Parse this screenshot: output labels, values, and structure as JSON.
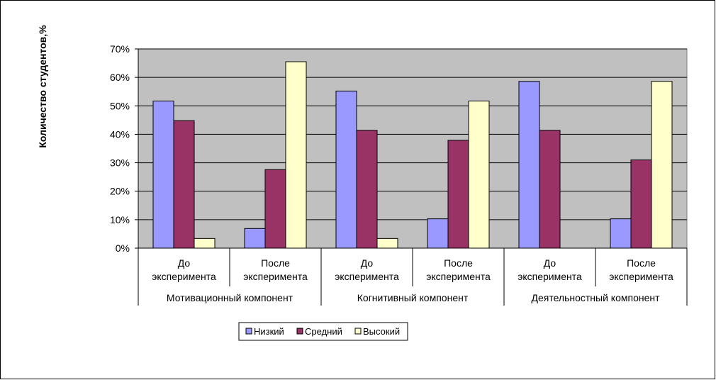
{
  "chart_data": {
    "type": "bar",
    "ylabel": "Количество студентов,%",
    "ylim": [
      0,
      70
    ],
    "yticks": [
      "0%",
      "10%",
      "20%",
      "30%",
      "40%",
      "50%",
      "60%",
      "70%"
    ],
    "grid": true,
    "legend_position": "bottom",
    "categories": [
      {
        "line1": "До",
        "line2": "эксперимента"
      },
      {
        "line1": "После",
        "line2": "эксперимента"
      },
      {
        "line1": "До",
        "line2": "эксперимента"
      },
      {
        "line1": "После",
        "line2": "эксперимента"
      },
      {
        "line1": "До",
        "line2": "эксперимента"
      },
      {
        "line1": "После",
        "line2": "эксперимента"
      }
    ],
    "groups": [
      "Мотивационный компонент",
      "Когнитивный компонент",
      "Деятельностный компонент"
    ],
    "series": [
      {
        "name": "Низкий",
        "color": "#9999ff",
        "values": [
          51.7,
          6.9,
          55.2,
          10.3,
          58.6,
          10.3
        ]
      },
      {
        "name": "Средний",
        "color": "#993366",
        "values": [
          44.8,
          27.6,
          41.4,
          37.9,
          41.4,
          31.0
        ]
      },
      {
        "name": "Высокий",
        "color": "#ffffcc",
        "values": [
          3.4,
          65.5,
          3.4,
          51.7,
          0,
          58.6
        ]
      }
    ],
    "plot_background": "#c0c0c0"
  }
}
